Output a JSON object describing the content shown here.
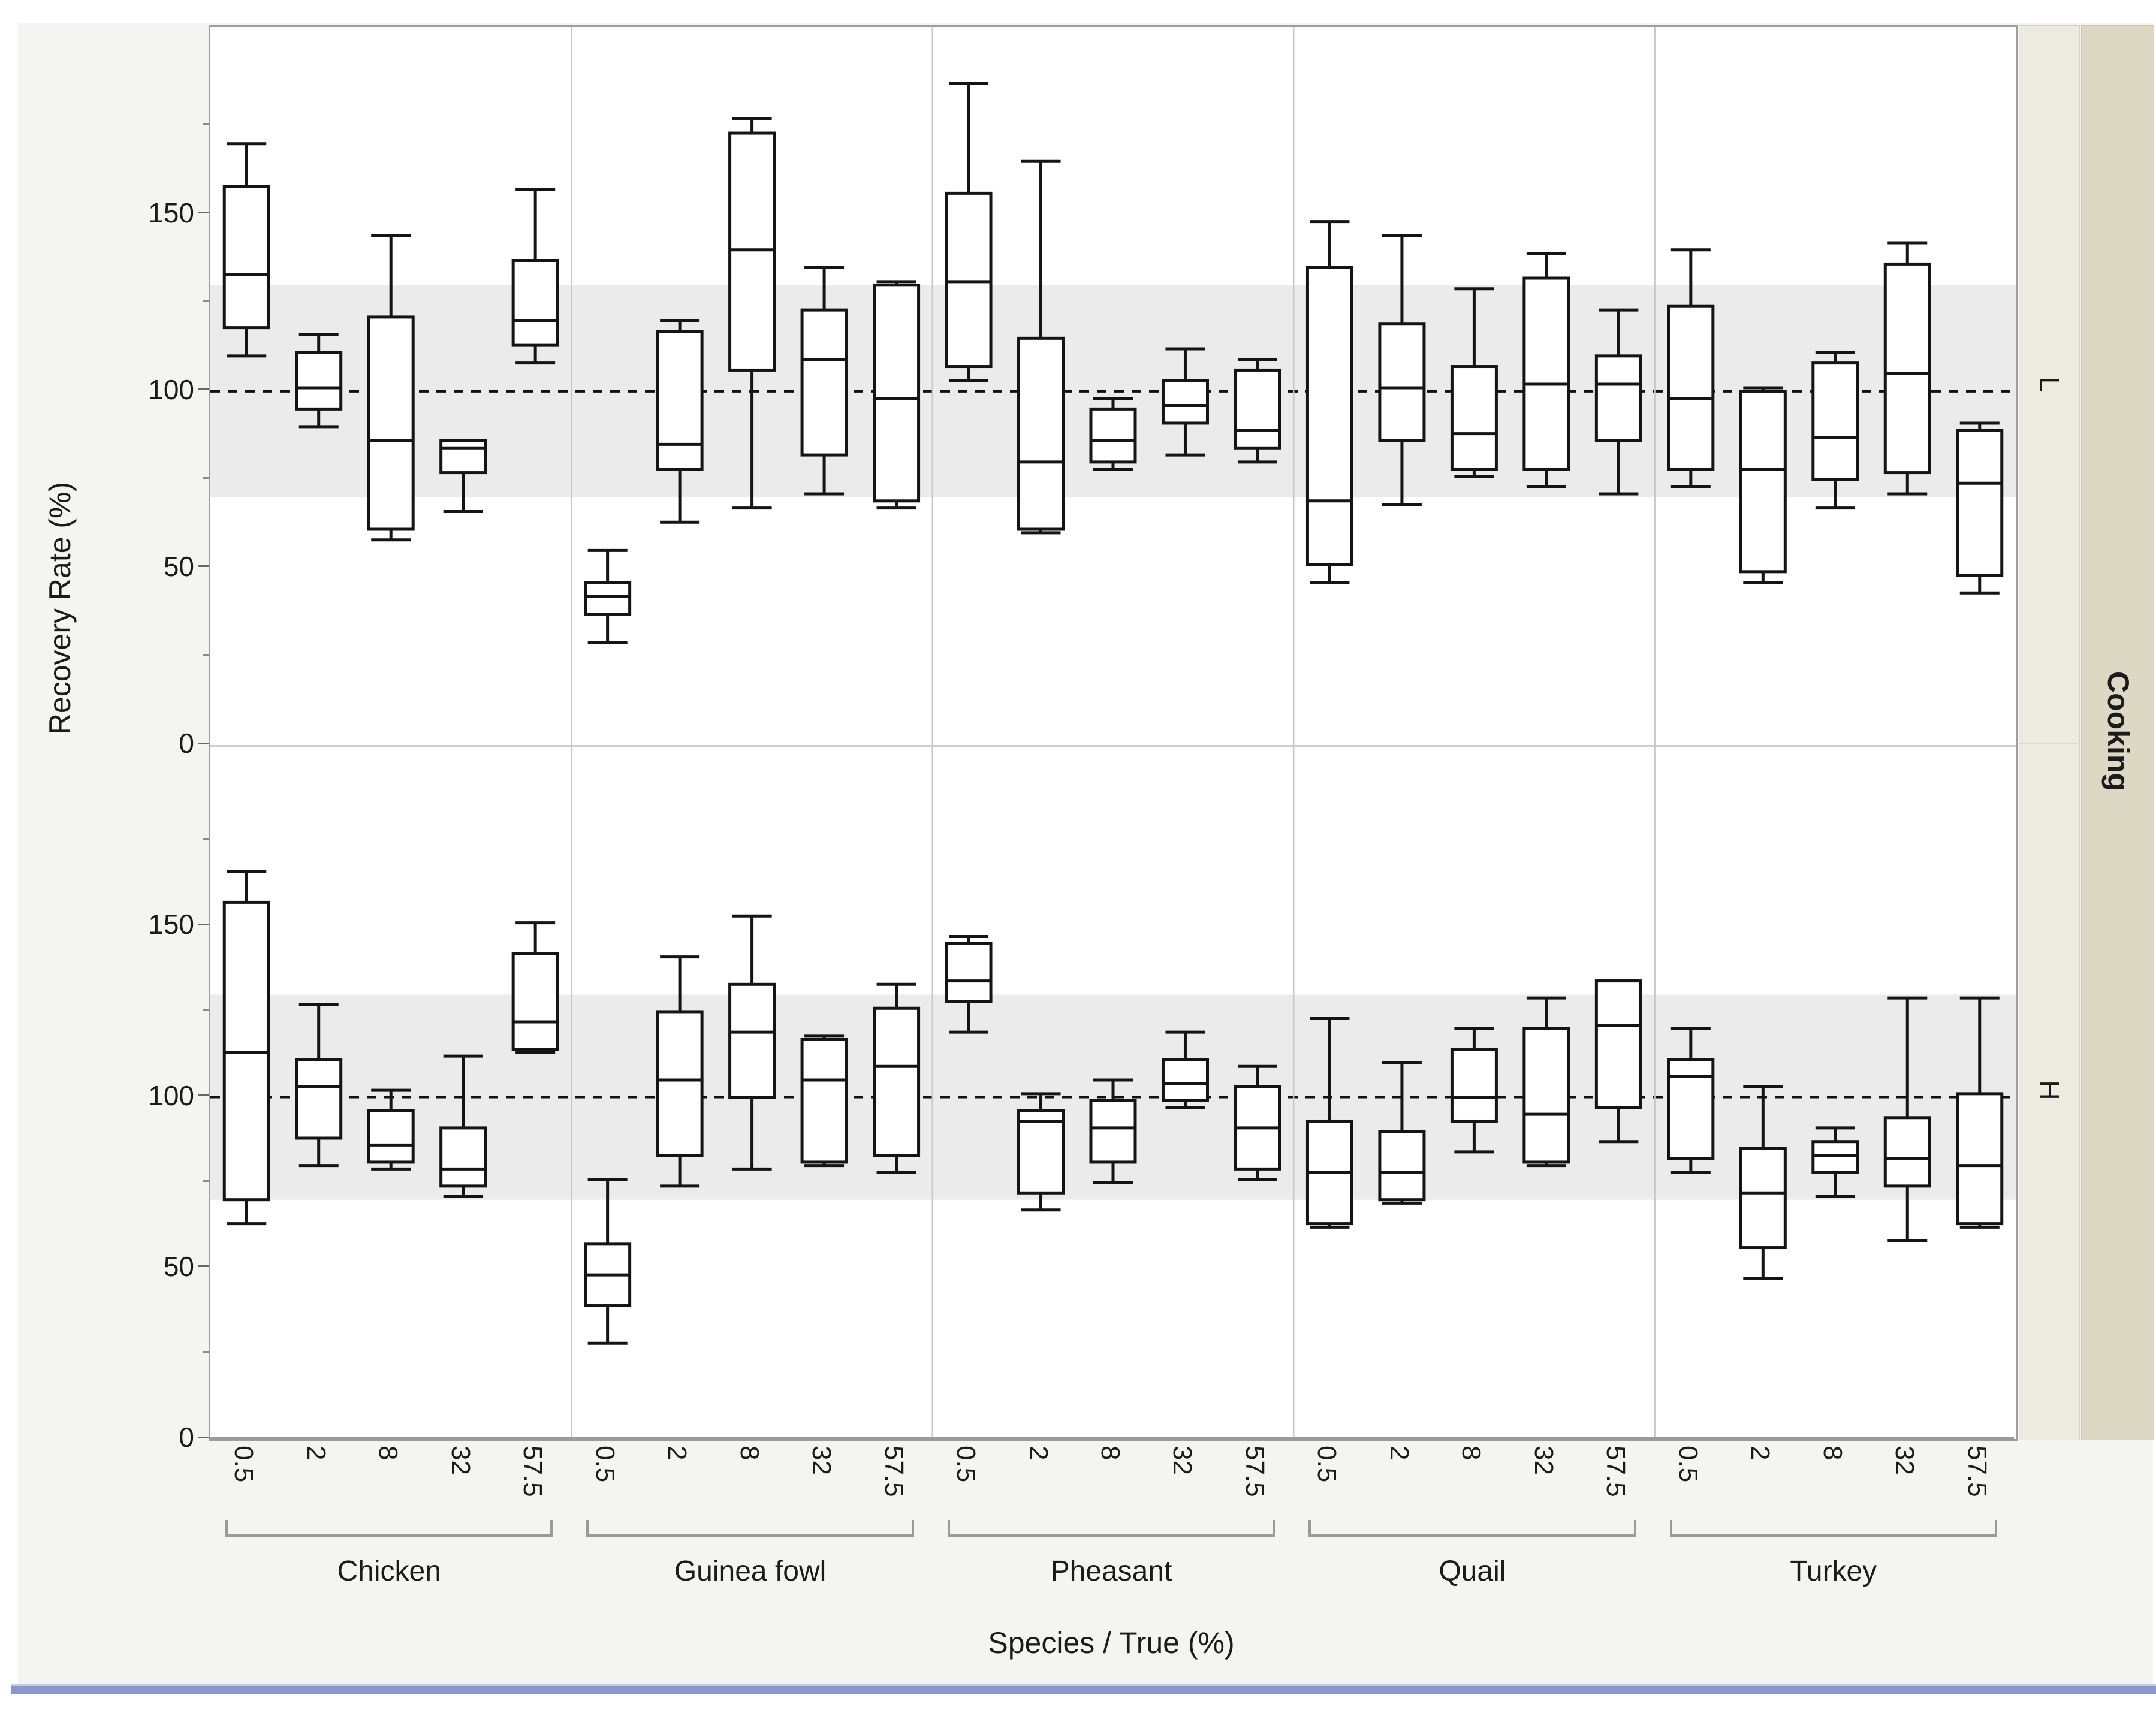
{
  "chart_data": {
    "type": "boxplot",
    "title": "",
    "xlabel": "Species / True (%)",
    "ylabel": "Recovery Rate (%)",
    "facet_column_title": "Cooking",
    "facet_rows": [
      "L",
      "H"
    ],
    "species": [
      "Chicken",
      "Guinea fowl",
      "Pheasant",
      "Quail",
      "Turkey"
    ],
    "doses": [
      "0.5",
      "2",
      "8",
      "32",
      "57.5"
    ],
    "y_tick_labels": [
      "150",
      "100",
      "50",
      "0"
    ],
    "y_ticks": [
      150,
      100,
      50,
      0
    ],
    "y_minor_ticks": [
      175,
      125,
      75,
      25
    ],
    "ylim": [
      0,
      203
    ],
    "reference_line_y": 100,
    "reference_band": [
      70,
      130
    ],
    "grid": "off",
    "legend_position": "none",
    "box_stats_order": [
      "min",
      "q1",
      "median",
      "q3",
      "max"
    ],
    "boxes": {
      "L": {
        "Chicken": [
          [
            110,
            118,
            133,
            158,
            170
          ],
          [
            90,
            95,
            101,
            111,
            116
          ],
          [
            58,
            61,
            86,
            121,
            144
          ],
          [
            66,
            77,
            84,
            86,
            86
          ],
          [
            108,
            113,
            120,
            137,
            157
          ]
        ],
        "Guinea fowl": [
          [
            29,
            37,
            42,
            46,
            55
          ],
          [
            63,
            78,
            85,
            117,
            120
          ],
          [
            67,
            106,
            140,
            173,
            177
          ],
          [
            71,
            82,
            109,
            123,
            135
          ],
          [
            67,
            69,
            98,
            130,
            131
          ]
        ],
        "Pheasant": [
          [
            103,
            107,
            131,
            156,
            187
          ],
          [
            60,
            61,
            80,
            115,
            165
          ],
          [
            78,
            80,
            86,
            95,
            98
          ],
          [
            82,
            91,
            96,
            103,
            112
          ],
          [
            80,
            84,
            89,
            106,
            109
          ]
        ],
        "Quail": [
          [
            46,
            51,
            69,
            135,
            148
          ],
          [
            68,
            86,
            101,
            119,
            144
          ],
          [
            76,
            78,
            88,
            107,
            129
          ],
          [
            73,
            78,
            102,
            132,
            139
          ],
          [
            71,
            86,
            102,
            110,
            123
          ]
        ],
        "Turkey": [
          [
            73,
            78,
            98,
            124,
            140
          ],
          [
            46,
            49,
            78,
            100,
            101
          ],
          [
            67,
            75,
            87,
            108,
            111
          ],
          [
            71,
            77,
            105,
            136,
            142
          ],
          [
            43,
            48,
            74,
            89,
            91
          ]
        ]
      },
      "H": {
        "Chicken": [
          [
            63,
            70,
            113,
            157,
            166
          ],
          [
            80,
            88,
            103,
            111,
            127
          ],
          [
            79,
            81,
            86,
            96,
            102
          ],
          [
            71,
            74,
            79,
            91,
            112
          ],
          [
            113,
            114,
            122,
            142,
            151
          ]
        ],
        "Guinea fowl": [
          [
            28,
            39,
            48,
            57,
            76
          ],
          [
            74,
            83,
            105,
            125,
            141
          ],
          [
            79,
            100,
            119,
            133,
            153
          ],
          [
            80,
            81,
            105,
            117,
            118
          ],
          [
            78,
            83,
            109,
            126,
            133
          ]
        ],
        "Pheasant": [
          [
            119,
            128,
            134,
            145,
            147
          ],
          [
            67,
            72,
            93,
            96,
            101
          ],
          [
            75,
            81,
            91,
            99,
            105
          ],
          [
            97,
            99,
            104,
            111,
            119
          ],
          [
            76,
            79,
            91,
            103,
            109
          ]
        ],
        "Quail": [
          [
            62,
            63,
            78,
            93,
            123
          ],
          [
            69,
            70,
            78,
            90,
            110
          ],
          [
            84,
            93,
            100,
            114,
            120
          ],
          [
            80,
            81,
            95,
            120,
            129
          ],
          [
            87,
            97,
            121,
            134,
            134
          ]
        ],
        "Turkey": [
          [
            78,
            82,
            106,
            111,
            120
          ],
          [
            47,
            56,
            72,
            85,
            103
          ],
          [
            71,
            78,
            83,
            87,
            91
          ],
          [
            58,
            74,
            82,
            94,
            129
          ],
          [
            62,
            63,
            80,
            101,
            129
          ]
        ]
      }
    },
    "colors": {
      "box_stroke": "#141414",
      "reference_band_fill": "#ebebeb",
      "panel_background": "#ffffff",
      "app_background": "#f4f4f2",
      "panel_border": "#9e9e9e",
      "panel_divider": "#c6c6c6",
      "strip_inner_fill": "#edebdf",
      "strip_outer_fill": "#dcd8c3",
      "bottom_window_bar": "#8b96ca"
    }
  }
}
